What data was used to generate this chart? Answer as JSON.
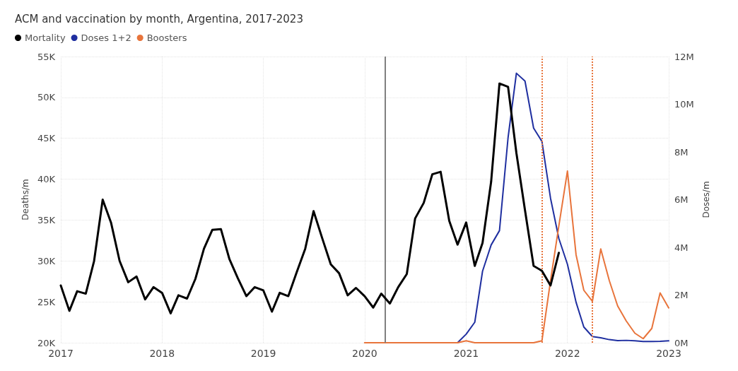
{
  "chart_data": {
    "type": "line",
    "title": "ACM and vaccination by month, Argentina, 2017-2023",
    "ylabel": "Deaths/m",
    "y2label": "Doses/m",
    "xlim": [
      "2017-01",
      "2023-01"
    ],
    "xticks": [
      {
        "value": "2017-01",
        "label": "2017"
      },
      {
        "value": "2018-01",
        "label": "2018"
      },
      {
        "value": "2019-01",
        "label": "2019"
      },
      {
        "value": "2020-01",
        "label": "2020"
      },
      {
        "value": "2021-01",
        "label": "2021"
      },
      {
        "value": "2022-01",
        "label": "2022"
      },
      {
        "value": "2023-01",
        "label": "2023"
      }
    ],
    "ylim": [
      20000,
      55000
    ],
    "yticks": [
      {
        "value": 20000,
        "label": "20K"
      },
      {
        "value": 25000,
        "label": "25K"
      },
      {
        "value": 30000,
        "label": "30K"
      },
      {
        "value": 35000,
        "label": "35K"
      },
      {
        "value": 40000,
        "label": "40K"
      },
      {
        "value": 45000,
        "label": "45K"
      },
      {
        "value": 50000,
        "label": "50K"
      },
      {
        "value": 55000,
        "label": "55K"
      }
    ],
    "y2lim": [
      0,
      12000000
    ],
    "y2ticks": [
      {
        "value": 0,
        "label": "0M"
      },
      {
        "value": 2000000,
        "label": "2M"
      },
      {
        "value": 4000000,
        "label": "4M"
      },
      {
        "value": 6000000,
        "label": "6M"
      },
      {
        "value": 8000000,
        "label": "8M"
      },
      {
        "value": 10000000,
        "label": "10M"
      },
      {
        "value": 12000000,
        "label": "12M"
      }
    ],
    "grid": true,
    "legend": "top left",
    "marker": "none",
    "line_style": "solid",
    "ref_lines": [
      {
        "axis": "x",
        "value": "2020-03-15",
        "color": "#808080",
        "line_style": "solid"
      },
      {
        "axis": "x",
        "value": "2021-10",
        "color": "#e8743b",
        "line_style": "dotted"
      },
      {
        "axis": "x",
        "value": "2022-04",
        "color": "#e8743b",
        "line_style": "dotted"
      }
    ],
    "series": [
      {
        "name": "Mortality",
        "color": "#000000",
        "x": [
          "2017-01",
          "2017-02",
          "2017-03",
          "2017-04",
          "2017-05",
          "2017-06",
          "2017-07",
          "2017-08",
          "2017-09",
          "2017-10",
          "2017-11",
          "2017-12",
          "2018-01",
          "2018-02",
          "2018-03",
          "2018-04",
          "2018-05",
          "2018-06",
          "2018-07",
          "2018-08",
          "2018-09",
          "2018-10",
          "2018-11",
          "2018-12",
          "2019-01",
          "2019-02",
          "2019-03",
          "2019-04",
          "2019-05",
          "2019-06",
          "2019-07",
          "2019-08",
          "2019-09",
          "2019-10",
          "2019-11",
          "2019-12",
          "2020-01",
          "2020-02",
          "2020-03",
          "2020-04",
          "2020-05",
          "2020-06",
          "2020-07",
          "2020-08",
          "2020-09",
          "2020-10",
          "2020-11",
          "2020-12",
          "2021-01",
          "2021-02",
          "2021-03",
          "2021-04",
          "2021-05",
          "2021-06",
          "2021-07",
          "2021-08",
          "2021-09",
          "2021-10",
          "2021-11",
          "2021-12"
        ],
        "values": [
          27000,
          23900,
          26300,
          26000,
          30000,
          37500,
          34700,
          30000,
          27400,
          28100,
          25300,
          26800,
          26100,
          23600,
          25800,
          25400,
          27800,
          31500,
          33800,
          33900,
          30200,
          27900,
          25700,
          26800,
          26400,
          23800,
          26100,
          25700,
          28600,
          31500,
          36100,
          32800,
          29600,
          28500,
          25800,
          26700,
          25700,
          24300,
          26000,
          24800,
          26800,
          28400,
          35200,
          37100,
          40600,
          40900,
          34900,
          32000,
          34700,
          29400,
          32200,
          39700,
          51700,
          51300,
          43200,
          36200,
          29400,
          28800,
          27000,
          31000
        ]
      },
      {
        "name": "Doses 1+2",
        "color": "#1f2fa0",
        "axis": "y2",
        "x": [
          "2020-12",
          "2021-01",
          "2021-02",
          "2021-03",
          "2021-04",
          "2021-05",
          "2021-06",
          "2021-07",
          "2021-08",
          "2021-09",
          "2021-10",
          "2021-11",
          "2021-12",
          "2022-01",
          "2022-02",
          "2022-03",
          "2022-04",
          "2022-05",
          "2022-06",
          "2022-07",
          "2022-08",
          "2022-09",
          "2022-10",
          "2022-11",
          "2022-12",
          "2023-01"
        ],
        "values": [
          0,
          360000,
          860000,
          3000000,
          4100000,
          4700000,
          8600000,
          11300000,
          10970000,
          9000000,
          8440000,
          6060000,
          4370000,
          3290000,
          1700000,
          660000,
          260000,
          210000,
          130000,
          90000,
          100000,
          80000,
          50000,
          50000,
          60000,
          80000
        ]
      },
      {
        "name": "Boosters",
        "color": "#e8743b",
        "axis": "y2",
        "x": [
          "2020-01",
          "2020-02",
          "2020-03",
          "2020-04",
          "2020-05",
          "2020-06",
          "2020-07",
          "2020-08",
          "2020-09",
          "2020-10",
          "2020-11",
          "2020-12",
          "2021-01",
          "2021-02",
          "2021-03",
          "2021-04",
          "2021-05",
          "2021-06",
          "2021-07",
          "2021-08",
          "2021-09",
          "2021-10",
          "2021-11",
          "2021-12",
          "2022-01",
          "2022-02",
          "2022-03",
          "2022-04",
          "2022-05",
          "2022-06",
          "2022-07",
          "2022-08",
          "2022-09",
          "2022-10",
          "2022-11",
          "2022-12",
          "2023-01"
        ],
        "values": [
          0,
          0,
          0,
          0,
          0,
          0,
          0,
          0,
          0,
          0,
          0,
          0,
          80000,
          0,
          0,
          0,
          0,
          0,
          0,
          0,
          0,
          80000,
          2600000,
          4900000,
          7200000,
          3690000,
          2200000,
          1740000,
          3930000,
          2600000,
          1540000,
          910000,
          400000,
          170000,
          600000,
          2090000,
          1460000
        ]
      }
    ]
  }
}
